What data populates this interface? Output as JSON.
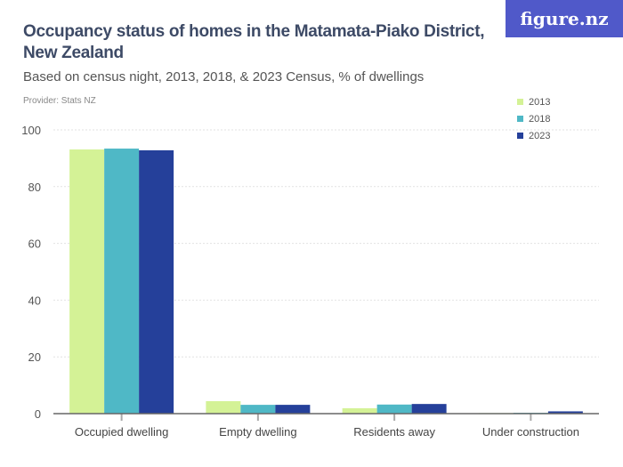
{
  "title": "Occupancy status of homes in the Matamata-Piako District, New Zealand",
  "subtitle": "Based on census night, 2013, 2018, & 2023 Census, % of dwellings",
  "provider": "Provider: Stats NZ",
  "logo": "figure.nz",
  "chart_data": {
    "type": "bar",
    "categories": [
      "Occupied dwelling",
      "Empty dwelling",
      "Residents away",
      "Under construction"
    ],
    "series": [
      {
        "name": "2013",
        "color": "#d4f296",
        "values": [
          93.1,
          4.4,
          1.9,
          0.2
        ]
      },
      {
        "name": "2018",
        "color": "#4fb8c6",
        "values": [
          93.4,
          3.1,
          3.2,
          0.3
        ]
      },
      {
        "name": "2023",
        "color": "#25409a",
        "values": [
          92.8,
          3.1,
          3.4,
          0.8
        ]
      }
    ],
    "ylim": [
      0,
      100
    ],
    "yticks": [
      0,
      20,
      40,
      60,
      80,
      100
    ],
    "grid": true,
    "legend": "top-right"
  }
}
